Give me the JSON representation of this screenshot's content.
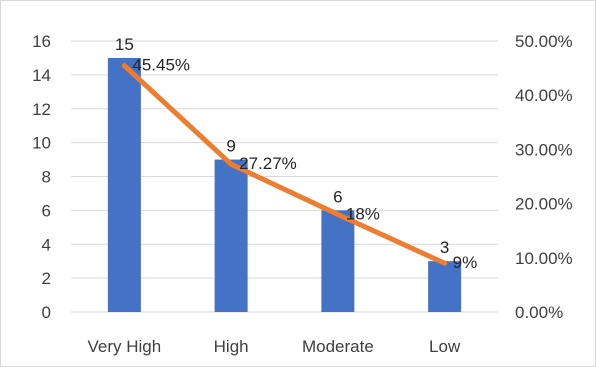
{
  "chart_data": {
    "type": "bar",
    "categories": [
      "Very High",
      "High",
      "Moderate",
      "Low"
    ],
    "series": [
      {
        "type": "bar",
        "axis": "left",
        "values": [
          15,
          9,
          6,
          3
        ],
        "data_labels": [
          "15",
          "9",
          "6",
          "3"
        ],
        "color": "#4472C4"
      },
      {
        "type": "line",
        "axis": "right",
        "values": [
          0.4545,
          0.2727,
          0.18,
          0.09
        ],
        "data_labels": [
          "45.45%",
          "27.27%",
          "18%",
          "9%"
        ],
        "color": "#ED7D31"
      }
    ],
    "y_left": {
      "ylim": [
        0,
        16
      ],
      "ticks": [
        0,
        2,
        4,
        6,
        8,
        10,
        12,
        14,
        16
      ],
      "tick_labels": [
        "0",
        "2",
        "4",
        "6",
        "8",
        "10",
        "12",
        "14",
        "16"
      ]
    },
    "y_right": {
      "ylim": [
        0,
        0.5
      ],
      "ticks": [
        0,
        0.1,
        0.2,
        0.3,
        0.4,
        0.5
      ],
      "tick_labels": [
        "0.00%",
        "10.00%",
        "20.00%",
        "30.00%",
        "40.00%",
        "50.00%"
      ]
    },
    "grid": true,
    "gridline_color": "#d9d9d9",
    "title": "",
    "xlabel": "",
    "ylabel": "",
    "legend": false
  }
}
